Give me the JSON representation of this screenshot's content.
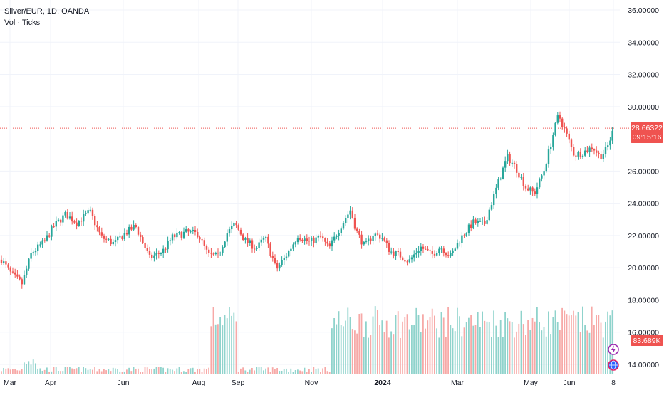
{
  "header": {
    "symbol_line": "Silver/EUR, 1D, OANDA",
    "volume_line": "Vol · Ticks"
  },
  "price_badge": {
    "price": "28.66322",
    "countdown": "09:15:16"
  },
  "volume_badge": {
    "value": "83.689K"
  },
  "colors": {
    "up": "#26a69a",
    "down": "#ef5350",
    "up_volume": "#8fd3cc",
    "down_volume": "#f7a9a7"
  },
  "icons": [
    "lightning-icon",
    "globe-icon"
  ],
  "chart_data": {
    "type": "candlestick",
    "y_axis": {
      "ticks": [
        "36.00000",
        "34.00000",
        "32.00000",
        "30.00000",
        "26.00000",
        "24.00000",
        "22.00000",
        "20.00000",
        "18.00000",
        "16.00000",
        "14.00000"
      ],
      "range": [
        13.2,
        36.5
      ]
    },
    "x_axis": {
      "ticks": [
        "Mar",
        "Apr",
        "Jun",
        "Aug",
        "Sep",
        "Nov",
        "2024",
        "Mar",
        "May",
        "Jun",
        "8"
      ]
    },
    "last_price": 28.66322,
    "key_levels": [
      {
        "date": "Mar 2023",
        "close": 20.3
      },
      {
        "date": "Apr 2023 (start)",
        "close": 19.0
      },
      {
        "date": "Apr 2023 (high)",
        "close": 23.6
      },
      {
        "date": "Jun 2023",
        "close": 21.8
      },
      {
        "date": "Jul 2023",
        "close": 22.6
      },
      {
        "date": "Aug 2023",
        "close": 20.6
      },
      {
        "date": "Aug 2023 (high)",
        "close": 22.8
      },
      {
        "date": "Sep 2023 (low)",
        "close": 19.9
      },
      {
        "date": "Oct 2023",
        "close": 21.8
      },
      {
        "date": "Nov 2023 (high)",
        "close": 23.8
      },
      {
        "date": "Dec 2023",
        "close": 22.0
      },
      {
        "date": "Jan 2024",
        "close": 20.6
      },
      {
        "date": "Feb 2024",
        "close": 20.8
      },
      {
        "date": "Mar 2024",
        "close": 22.6
      },
      {
        "date": "Apr 2024",
        "close": 26.9
      },
      {
        "date": "May 2024 (low)",
        "close": 24.6
      },
      {
        "date": "May 2024 (high)",
        "close": 29.8
      },
      {
        "date": "Jun 2024",
        "close": 27.1
      },
      {
        "date": "Jul 8 2024",
        "close": 28.66
      }
    ],
    "volume_profile": [
      {
        "period": "Mar–Jul 2023",
        "level": "low, spike to ~5K late Mar"
      },
      {
        "period": "Aug 2023",
        "level": "high (~80K)"
      },
      {
        "period": "Sep–Nov 2023",
        "level": "low"
      },
      {
        "period": "Nov 2023 – Jul 2024",
        "level": "high (~60K–90K)"
      }
    ],
    "volume_last": "83.689K"
  }
}
